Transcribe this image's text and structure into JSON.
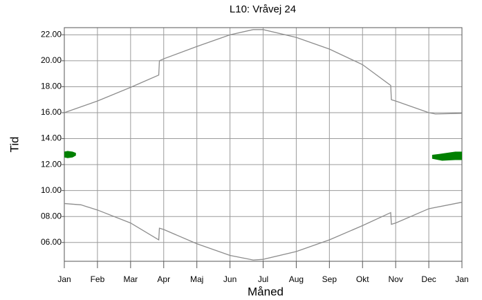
{
  "chart_data": {
    "type": "line",
    "title": "L10: Vråvej 24",
    "xlabel": "Måned",
    "ylabel": "Tid",
    "xlim": [
      0,
      12
    ],
    "xticks": [
      {
        "value": 0,
        "label": "Jan"
      },
      {
        "value": 1,
        "label": "Feb"
      },
      {
        "value": 2,
        "label": "Mar"
      },
      {
        "value": 3,
        "label": "Apr"
      },
      {
        "value": 4,
        "label": "Maj"
      },
      {
        "value": 5,
        "label": "Jun"
      },
      {
        "value": 6,
        "label": "Jul"
      },
      {
        "value": 7,
        "label": "Aug"
      },
      {
        "value": 8,
        "label": "Sep"
      },
      {
        "value": 9,
        "label": "Okt"
      },
      {
        "value": 10,
        "label": "Nov"
      },
      {
        "value": 11,
        "label": "Dec"
      },
      {
        "value": 12,
        "label": "Jan"
      }
    ],
    "ylim": [
      4.55,
      22.55
    ],
    "yticks": [
      {
        "value": 6,
        "label": "06.00"
      },
      {
        "value": 8,
        "label": "08.00"
      },
      {
        "value": 10,
        "label": "10.00"
      },
      {
        "value": 12,
        "label": "12.00"
      },
      {
        "value": 14,
        "label": "14.00"
      },
      {
        "value": 16,
        "label": "16.00"
      },
      {
        "value": 18,
        "label": "18.00"
      },
      {
        "value": 20,
        "label": "20.00"
      },
      {
        "value": 22,
        "label": "22.00"
      }
    ],
    "grid": true,
    "series": [
      {
        "color": "#8c8c8c",
        "x": [
          0,
          1,
          2,
          2.85,
          2.87,
          3,
          4,
          5,
          5.7,
          6,
          7,
          8,
          9,
          9.85,
          9.87,
          10,
          11,
          11.2,
          12
        ],
        "values": [
          16.0,
          16.9,
          17.95,
          18.9,
          20.0,
          20.15,
          21.1,
          22.0,
          22.4,
          22.4,
          21.8,
          20.9,
          19.7,
          18.1,
          17.0,
          16.9,
          16.0,
          15.9,
          15.95
        ]
      },
      {
        "color": "#8c8c8c",
        "x": [
          0,
          0.5,
          1,
          2,
          2.85,
          2.87,
          3,
          4,
          5,
          5.7,
          6,
          7,
          8,
          9,
          9.85,
          9.87,
          10,
          11,
          12
        ],
        "values": [
          9.0,
          8.9,
          8.5,
          7.5,
          6.2,
          7.1,
          7.0,
          5.9,
          5.0,
          4.65,
          4.7,
          5.3,
          6.2,
          7.3,
          8.3,
          7.4,
          7.5,
          8.6,
          9.1
        ]
      }
    ],
    "areas": [
      {
        "color": "#008000",
        "x": [
          0,
          0.1,
          0.25,
          0.35
        ],
        "low": [
          12.55,
          12.5,
          12.55,
          12.7
        ],
        "high": [
          13.0,
          13.05,
          13.0,
          12.9
        ]
      },
      {
        "color": "#008000",
        "x": [
          11.1,
          11.4,
          11.8,
          12
        ],
        "low": [
          12.45,
          12.3,
          12.35,
          12.35
        ],
        "high": [
          12.75,
          12.85,
          13.0,
          13.0
        ]
      }
    ]
  }
}
